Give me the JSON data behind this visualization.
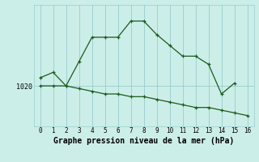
{
  "title": "Graphe pression niveau de la mer (hPa)",
  "background_color": "#cceee8",
  "plot_bg_color": "#cceee8",
  "grid_color": "#99cccc",
  "line_color": "#1a5c1a",
  "x_labels": [
    "0",
    "1",
    "2",
    "3",
    "4",
    "5",
    "6",
    "7",
    "8",
    "9",
    "10",
    "11",
    "12",
    "13",
    "14",
    "15",
    "16"
  ],
  "x_data": [
    0,
    1,
    2,
    3,
    4,
    5,
    6,
    7,
    8,
    9,
    10,
    11,
    12,
    13,
    14,
    15,
    16
  ],
  "y_upper": [
    1021.5,
    1022.5,
    1020.0,
    1024.5,
    1029.0,
    1029.0,
    1029.0,
    1032.0,
    1032.0,
    1029.5,
    1027.5,
    1025.5,
    1025.5,
    1024.0,
    1018.5,
    1020.5,
    null
  ],
  "y_lower": [
    1020.0,
    1020.0,
    1020.0,
    1019.5,
    1019.0,
    1018.5,
    1018.5,
    1018.0,
    1018.0,
    1017.5,
    1017.0,
    1016.5,
    1016.0,
    1016.0,
    1015.5,
    1015.0,
    1014.5
  ],
  "y_tick": 1020,
  "ylim": [
    1012.5,
    1035.0
  ],
  "ylabel_fontsize": 6,
  "xlabel_fontsize": 5.5,
  "title_fontsize": 7
}
